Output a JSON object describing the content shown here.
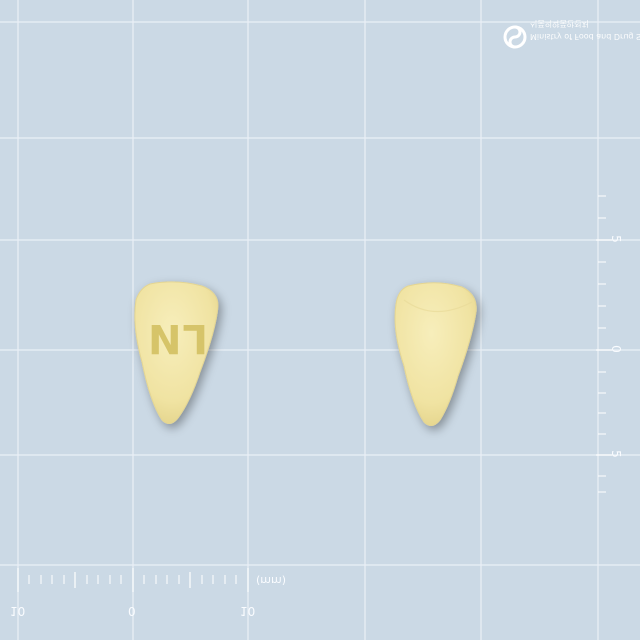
{
  "image": {
    "description_colors": {
      "background": "#cbd9e5",
      "grid": "#ffffff",
      "tablet": "#f2e6a8",
      "imprint": "#d6c469"
    }
  },
  "logo": {
    "line1": "Ministry of Food and Drug Safety",
    "line2": "식품의약품안전처"
  },
  "tablet_front": {
    "imprint": "LN"
  },
  "ruler_bottom": {
    "unit": "(mm)",
    "labels": [
      "10",
      "0",
      "10"
    ]
  },
  "ruler_right": {
    "labels": [
      "5",
      "0",
      "5"
    ]
  }
}
